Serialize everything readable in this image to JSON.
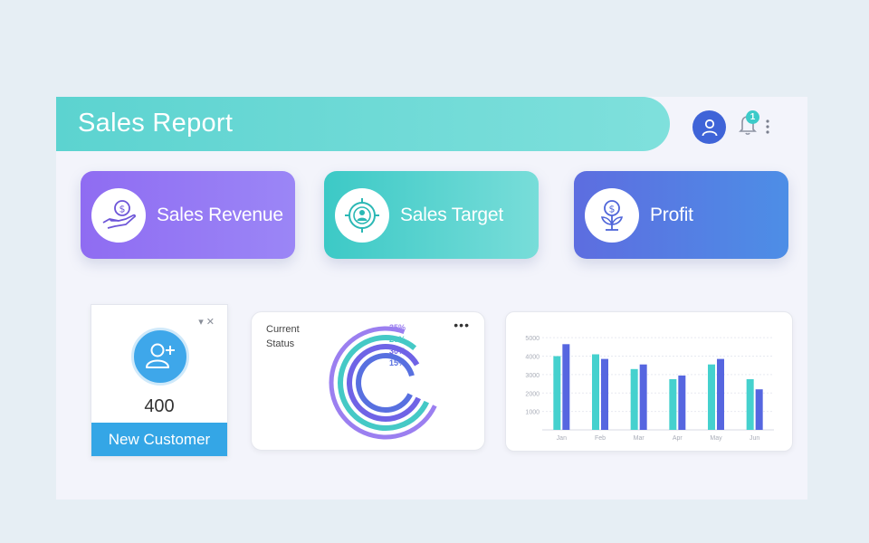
{
  "header": {
    "title": "Sales Report",
    "notification_count": "1"
  },
  "kpis": [
    {
      "label": "Sales Revenue",
      "icon": "money-hand-icon"
    },
    {
      "label": "Sales Target",
      "icon": "target-icon"
    },
    {
      "label": "Profit",
      "icon": "money-plant-icon"
    }
  ],
  "customer_card": {
    "count": "400",
    "footer_label": "New Customer",
    "controls": "▾ ✕"
  },
  "status_card": {
    "heading": "Current Status",
    "more_label": "•••",
    "rings": [
      {
        "label": "35%",
        "value": 35,
        "color": "#9b7ff0"
      },
      {
        "label": "20%",
        "value": 20,
        "color": "#45c9c6"
      },
      {
        "label": "30%",
        "value": 30,
        "color": "#6f63e6"
      },
      {
        "label": "15%",
        "value": 15,
        "color": "#5870e0"
      }
    ]
  },
  "colors": {
    "teal": "#45d1ce",
    "blue": "#5666e0",
    "purple": "#9b7ff0"
  },
  "chart_data": {
    "type": "bar",
    "categories": [
      "Jan",
      "Feb",
      "Mar",
      "Apr",
      "May",
      "Jun"
    ],
    "series": [
      {
        "values": [
          4000,
          4100,
          3300,
          2750,
          3550,
          2750
        ],
        "color": "#45d1ce"
      },
      {
        "values": [
          4650,
          3850,
          3550,
          2950,
          3850,
          2200
        ],
        "color": "#5666e0"
      }
    ],
    "yticks": [
      1000,
      2000,
      3000,
      4000,
      5000
    ],
    "ylim": [
      0,
      5500
    ],
    "grid": true
  }
}
